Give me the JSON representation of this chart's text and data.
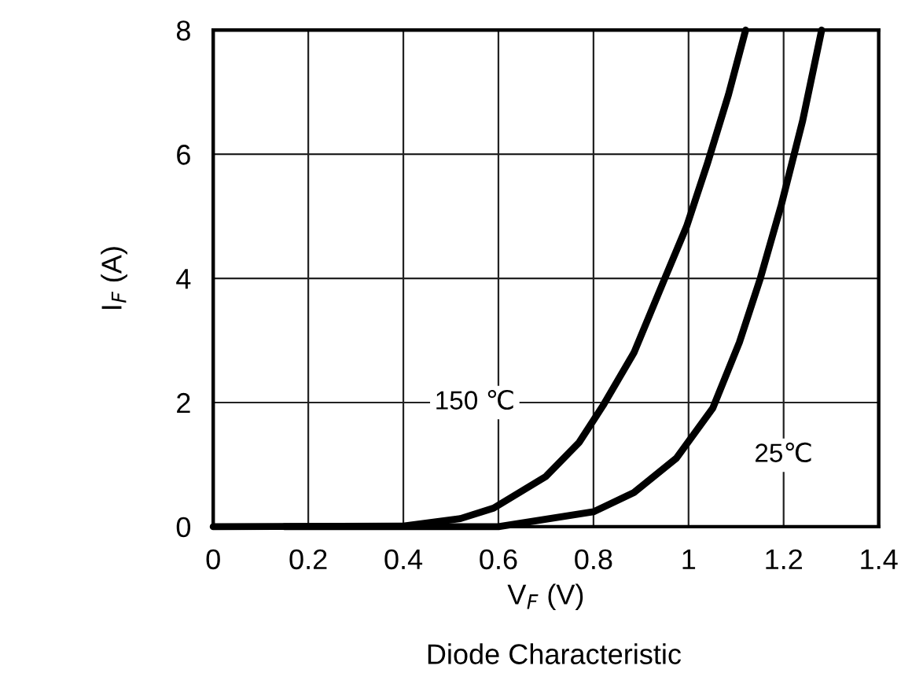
{
  "chart_data": {
    "type": "line",
    "title": "Diode Characteristic",
    "xlabel": "V$_{F}$ (V)",
    "ylabel": "I$_{F}$ (A)",
    "xlim": [
      0,
      1.4
    ],
    "xticks": [
      0,
      0.2,
      0.4,
      0.6,
      0.8,
      1,
      1.2,
      1.4
    ],
    "ylim": [
      0,
      8
    ],
    "yticks": [
      0,
      2,
      4,
      6,
      8
    ],
    "grid": true,
    "marker": "none",
    "line_style": "solid",
    "series": [
      {
        "name": "150 ℃",
        "color": "#000000",
        "x": [
          0,
          0.4,
          0.52,
          0.59,
          0.7,
          0.77,
          0.82,
          0.885,
          0.95,
          0.996,
          1.04,
          1.084,
          1.12
        ],
        "values": [
          0,
          0.01,
          0.13,
          0.3,
          0.81,
          1.36,
          1.95,
          2.8,
          4.0,
          4.84,
          5.86,
          6.96,
          8
        ]
      },
      {
        "name": "25℃",
        "color": "#000000",
        "x": [
          0.15,
          0.6,
          0.8,
          0.885,
          0.974,
          1.051,
          1.107,
          1.151,
          1.195,
          1.24,
          1.28
        ],
        "values": [
          0,
          0,
          0.24,
          0.55,
          1.1,
          1.91,
          2.97,
          4.0,
          5.18,
          6.54,
          8
        ]
      }
    ]
  }
}
